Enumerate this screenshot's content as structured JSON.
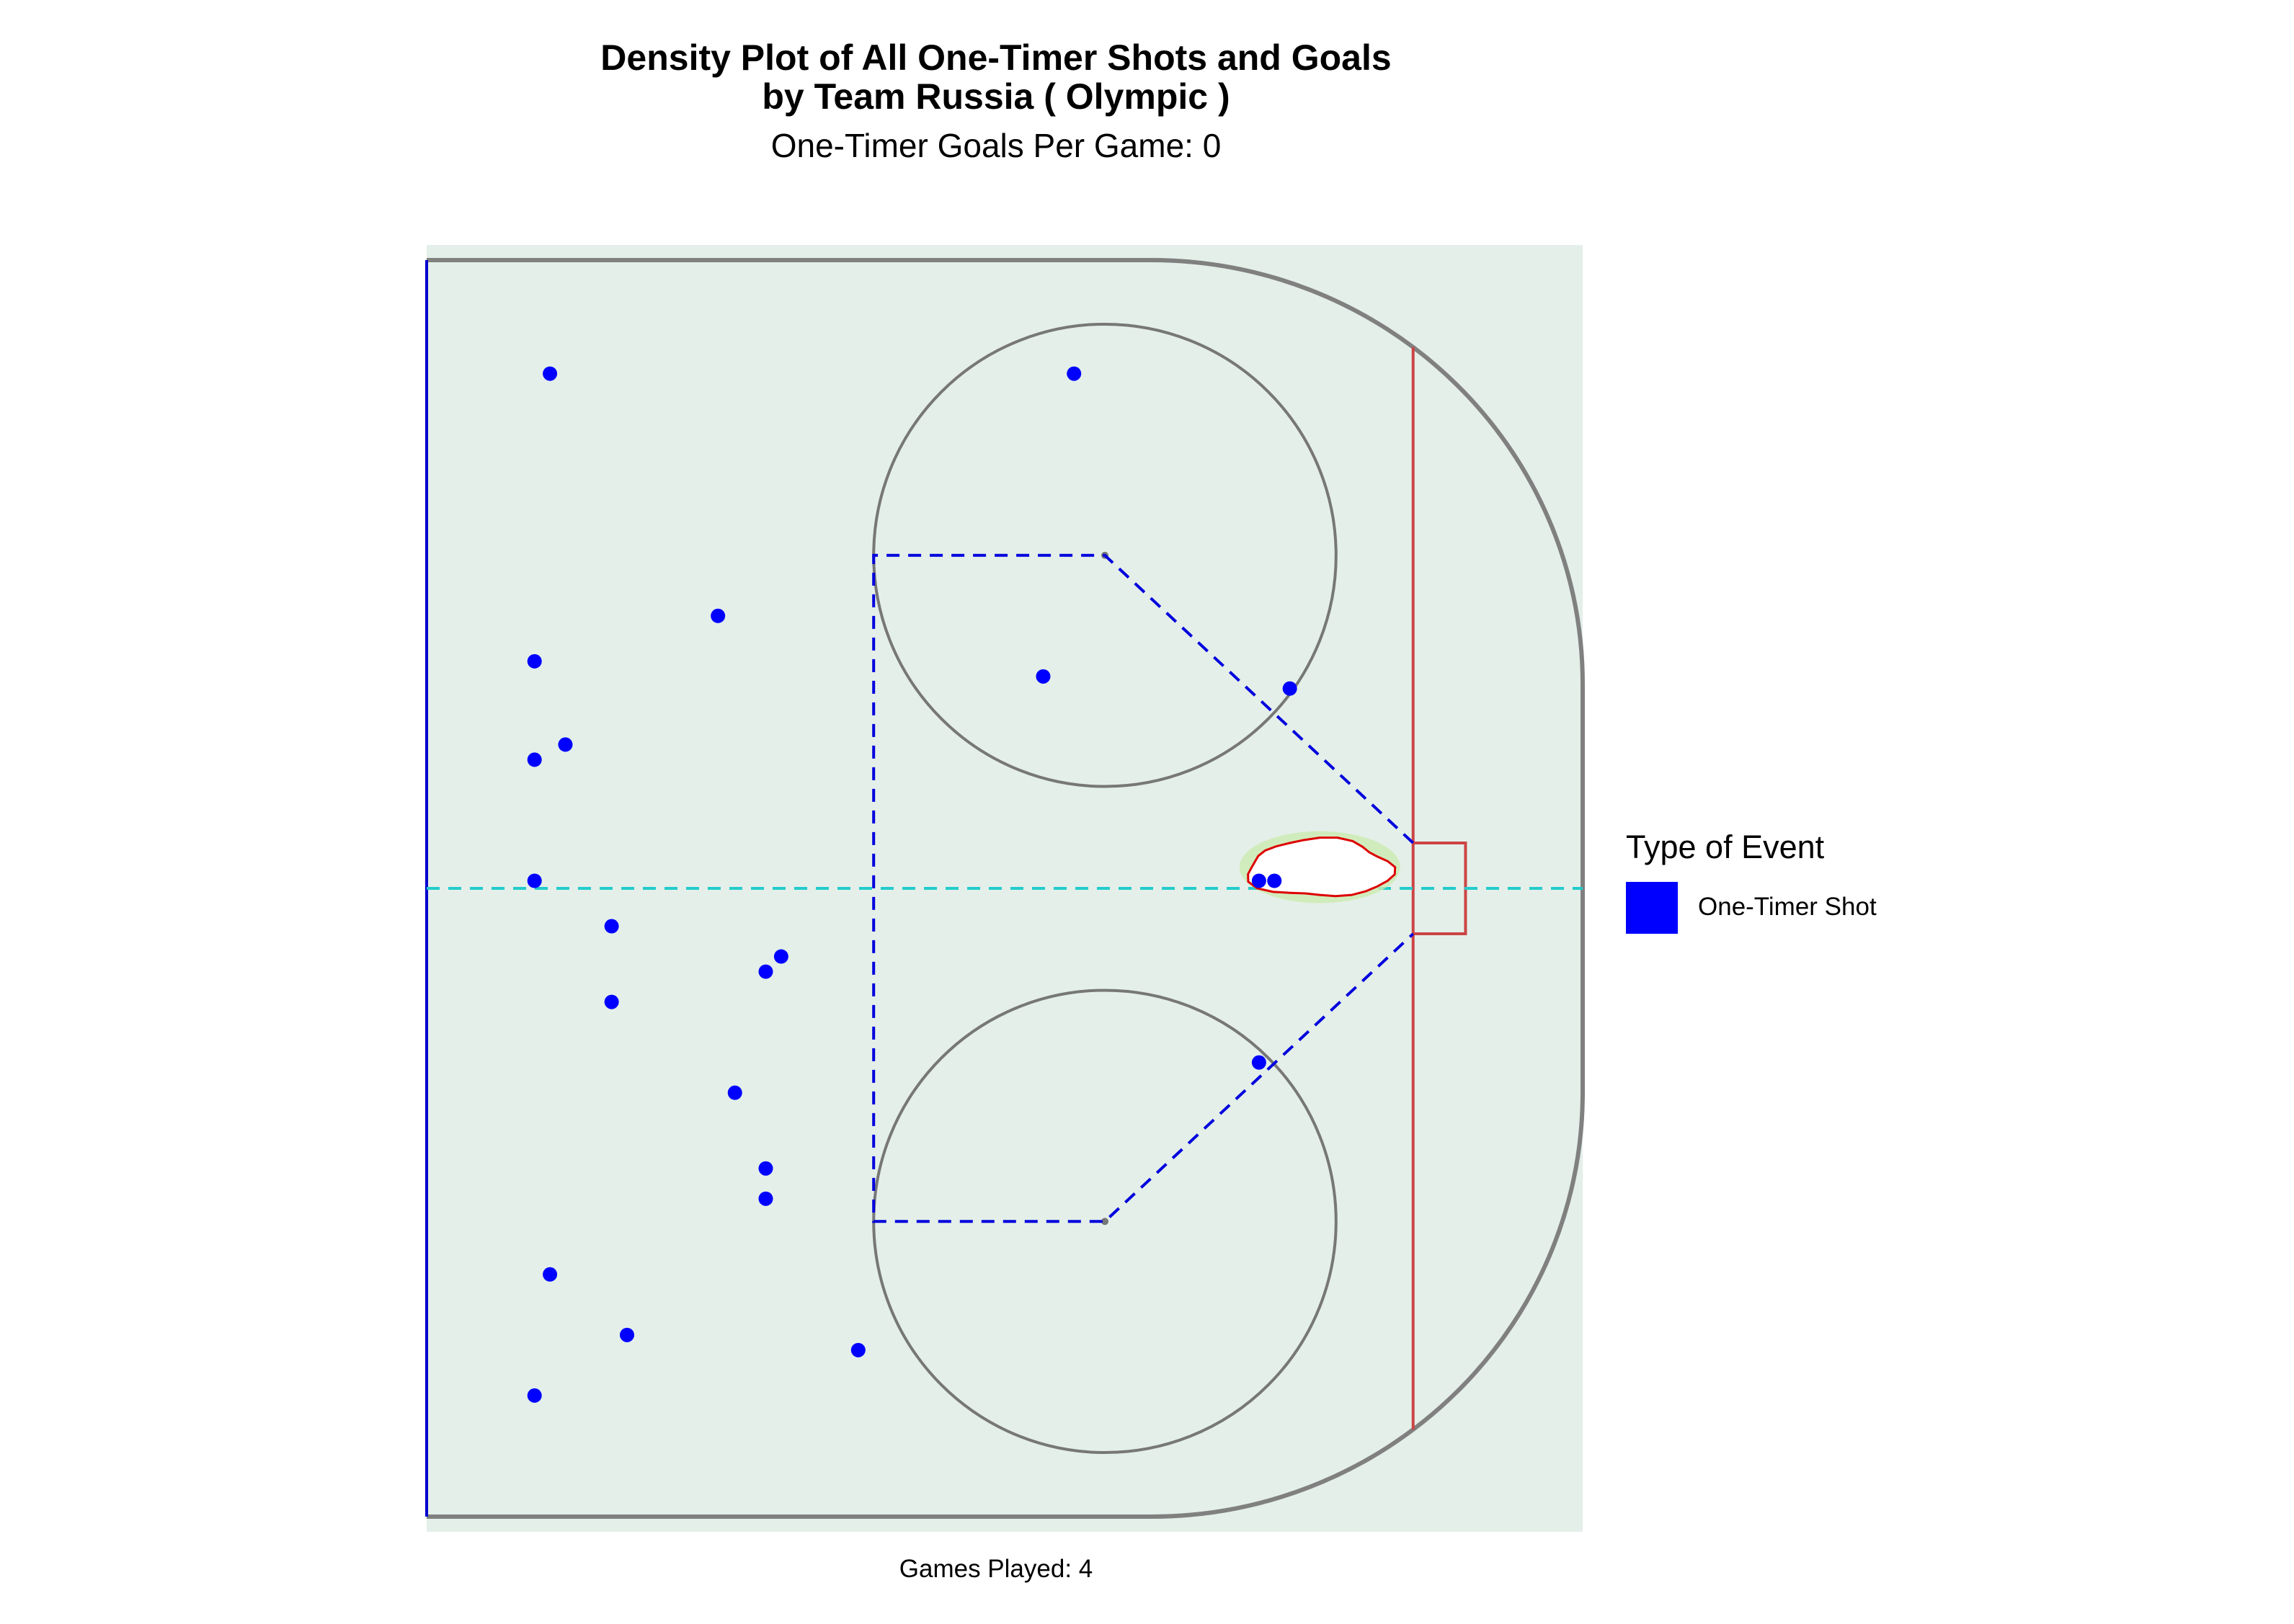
{
  "title_lines": [
    "Density Plot of All One-Timer Shots and Goals",
    "by Team Russia ( Olympic )"
  ],
  "subtitle": "One-Timer Goals Per Game: 0",
  "caption": "Games Played: 4",
  "legend": {
    "title": "Type of Event",
    "label": "One-Timer Shot",
    "color": "#0000ff"
  },
  "colors": {
    "panel_background": "#e4efe9",
    "boards": "#808080",
    "faceoff_circle": "#777777",
    "blue_line": "#0000cc",
    "goal_line": "#cc4444",
    "center_line": "#22cccc",
    "slot_lines": "#0000dd",
    "shot_point": "#0000ff",
    "density_fill": "#ffffff",
    "density_edge": "#dd0000",
    "density_halo": "#ccebb0"
  },
  "chart_data": {
    "type": "scatter",
    "title": "Density Plot of All One-Timer Shots and Goals by Team Russia ( Olympic )",
    "subtitle": "One-Timer Goals Per Game: 0",
    "caption": "Games Played: 4",
    "xlabel": "",
    "ylabel": "",
    "xlim": [
      25,
      100
    ],
    "ylim": [
      -42.5,
      42.5
    ],
    "grid": false,
    "legend_position": "right",
    "rink": {
      "blue_line_x": 25,
      "goal_line_x": 89,
      "faceoff_circles": [
        {
          "x": 69,
          "y": 22,
          "r": 15
        },
        {
          "x": 69,
          "y": -22,
          "r": 15
        }
      ],
      "crease": {
        "x_front": 89,
        "x_back": 92.4,
        "half_width": 3
      },
      "slot_polygon": [
        [
          89,
          3
        ],
        [
          69,
          22
        ],
        [
          54,
          22
        ],
        [
          54,
          -22
        ],
        [
          69,
          -22
        ],
        [
          89,
          -3
        ]
      ],
      "center_line_y": 0,
      "corner_radius": 28
    },
    "series": [
      {
        "name": "One-Timer Shot",
        "color": "#0000ff",
        "points": [
          {
            "x": 33,
            "y": 34
          },
          {
            "x": 67,
            "y": 34
          },
          {
            "x": 43.9,
            "y": 18
          },
          {
            "x": 32,
            "y": 15
          },
          {
            "x": 65,
            "y": 14
          },
          {
            "x": 81,
            "y": 13.2
          },
          {
            "x": 34,
            "y": 9.5
          },
          {
            "x": 32,
            "y": 8.5
          },
          {
            "x": 32,
            "y": 0.5
          },
          {
            "x": 79,
            "y": 0.5
          },
          {
            "x": 80,
            "y": 0.5
          },
          {
            "x": 37,
            "y": -2.5
          },
          {
            "x": 48,
            "y": -4.5
          },
          {
            "x": 47,
            "y": -5.5
          },
          {
            "x": 37,
            "y": -7.5
          },
          {
            "x": 79,
            "y": -11.5
          },
          {
            "x": 45,
            "y": -13.5
          },
          {
            "x": 47,
            "y": -18.5
          },
          {
            "x": 47,
            "y": -20.5
          },
          {
            "x": 33,
            "y": -25.5
          },
          {
            "x": 38,
            "y": -29.5
          },
          {
            "x": 53,
            "y": -30.5
          },
          {
            "x": 32,
            "y": -33.5
          }
        ]
      }
    ],
    "density_region": {
      "label": "",
      "center": {
        "x": 81,
        "y": 0.8
      },
      "extent_x": [
        78.3,
        87.6
      ],
      "extent_y": [
        -0.5,
        3.3
      ]
    }
  }
}
